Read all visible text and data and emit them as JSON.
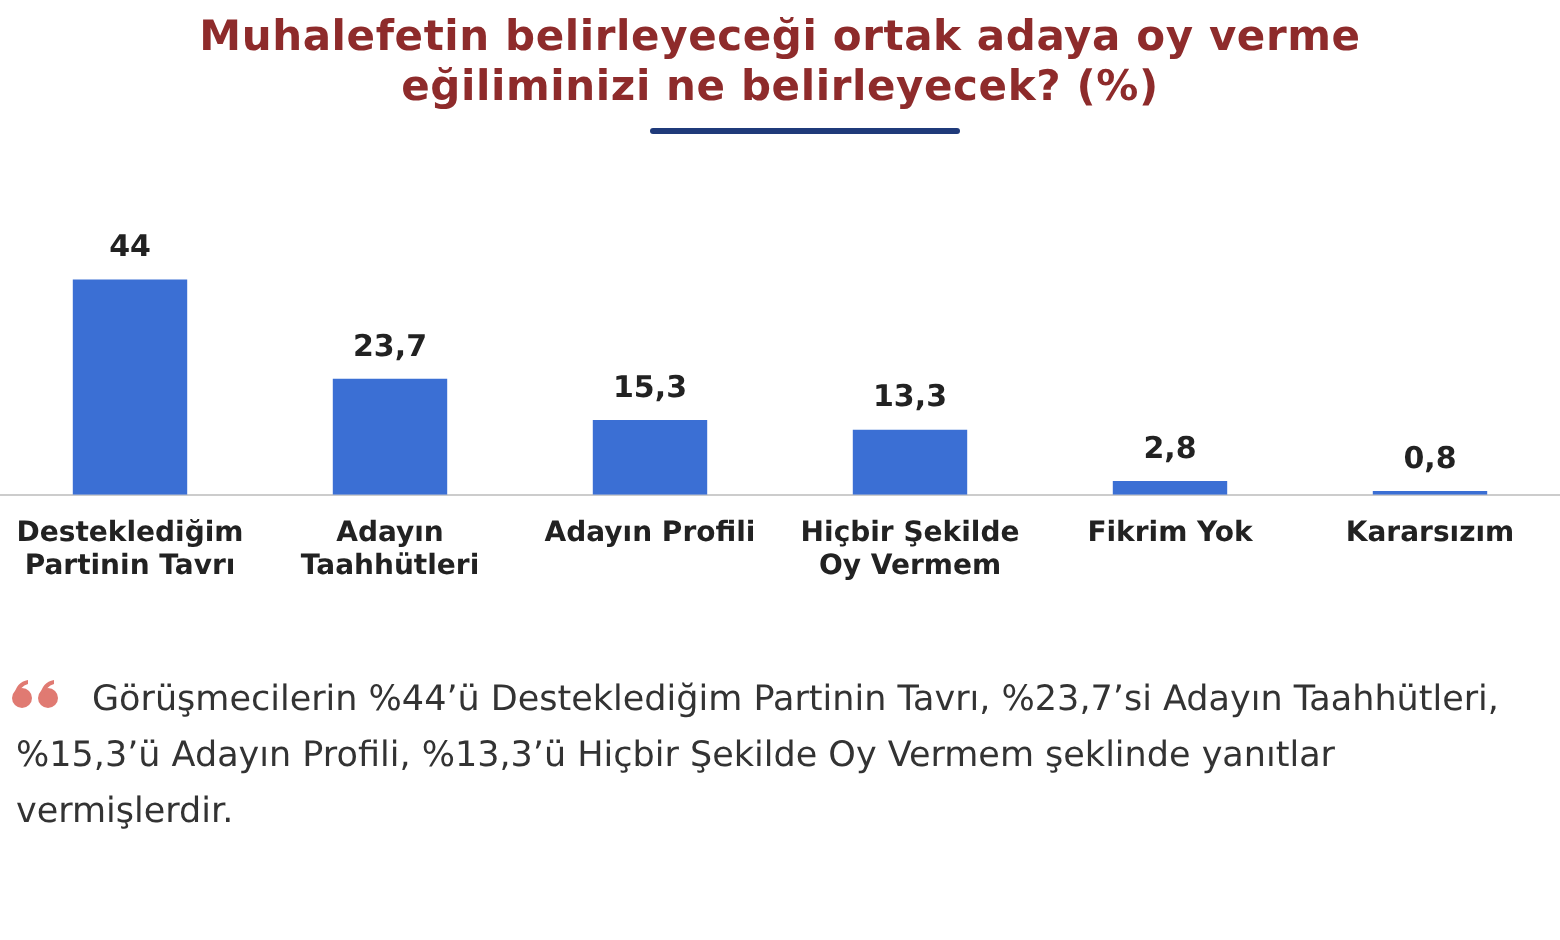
{
  "chart_data": {
    "type": "bar",
    "title": "Muhalefetin belirleyeceği ortak adaya oy verme eğiliminizi ne belirleyecek? (%)",
    "categories": [
      "Desteklediğim Partinin Tavrı",
      "Adayın Taahhütleri",
      "Adayın Profili",
      "Hiçbir Şekilde Oy Vermem",
      "Fikrim Yok",
      "Kararsızım"
    ],
    "values": [
      44,
      23.7,
      15.3,
      13.3,
      2.8,
      0.8
    ],
    "value_labels": [
      "44",
      "23,7",
      "15,3",
      "13,3",
      "2,8",
      "0,8"
    ],
    "color": "#3b6fd4",
    "annotations": [
      "Görüşmecilerin %44’ü Desteklediğim Partinin Tavrı, %23,7’si Adayın Taahhütleri, %15,3’ü Adayın Profili, %13,3’ü Hiçbir Şekilde Oy Vermem şeklinde yanıtlar vermişlerdir."
    ]
  }
}
